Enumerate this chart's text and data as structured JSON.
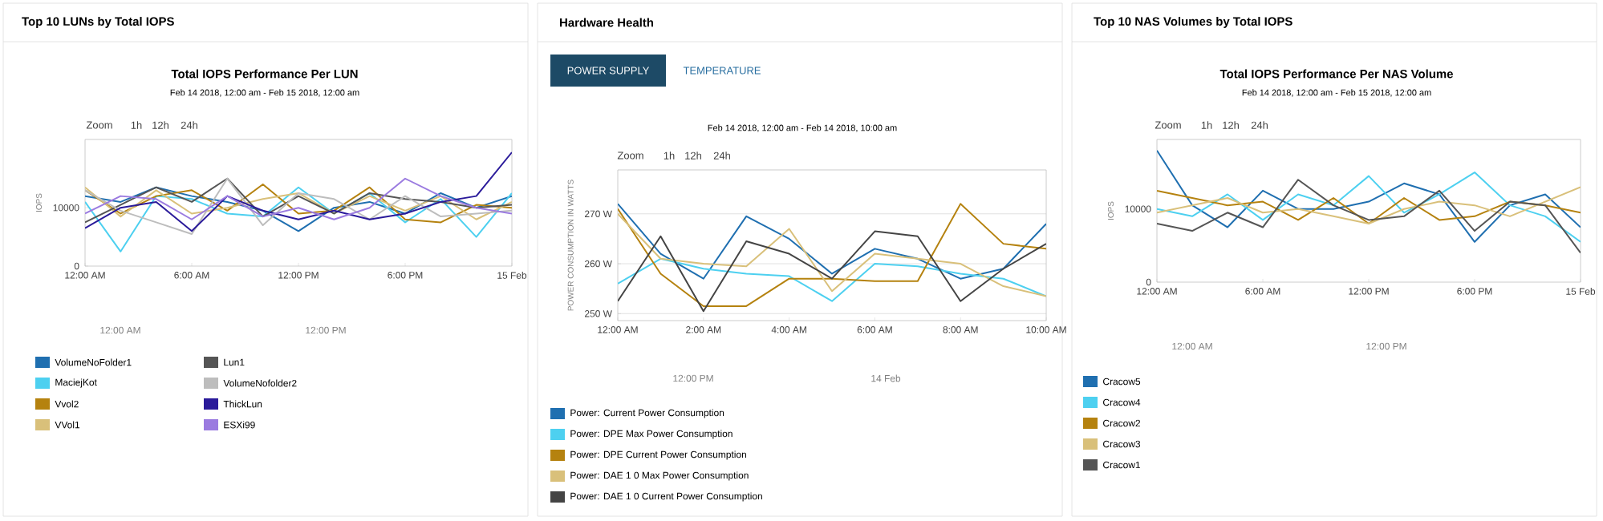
{
  "chart_data": [
    {
      "type": "line",
      "title": "Total IOPS Performance Per LUN",
      "subtitle": "Feb 14 2018, 12:00 am - Feb 15 2018, 12:00 am",
      "ylabel": "IOPS",
      "x": [
        0,
        2,
        4,
        6,
        8,
        10,
        12,
        14,
        16,
        18,
        20,
        22,
        24
      ],
      "xlim": [
        0,
        24
      ],
      "ylim": [
        0,
        21700
      ],
      "xticks": [
        {
          "value": 0,
          "label": "12:00 AM"
        },
        {
          "value": 6,
          "label": "6:00 AM"
        },
        {
          "value": 12,
          "label": "12:00 PM"
        },
        {
          "value": 18,
          "label": "6:00 PM"
        },
        {
          "value": 24,
          "label": "15 Feb"
        }
      ],
      "yticks": [
        0,
        10000
      ],
      "legend": "bottom",
      "series": [
        {
          "name": "VolumeNoFolder1",
          "color": "#1f6fb0",
          "values": [
            12000,
            11000,
            13500,
            12000,
            11000,
            9500,
            6000,
            10000,
            11000,
            9000,
            12500,
            10000,
            12000
          ]
        },
        {
          "name": "MaciejKot",
          "color": "#4dd0f0",
          "values": [
            11000,
            2500,
            12000,
            11500,
            9000,
            8500,
            13500,
            9000,
            12500,
            7500,
            11500,
            5000,
            12500
          ]
        },
        {
          "name": "Vvol2",
          "color": "#b5820f",
          "values": [
            13000,
            9000,
            12000,
            13000,
            9500,
            14000,
            9000,
            9500,
            13500,
            8000,
            7500,
            10500,
            10000
          ]
        },
        {
          "name": "VVol1",
          "color": "#d9c07a",
          "values": [
            13500,
            8500,
            13000,
            9000,
            10000,
            11500,
            12500,
            9000,
            12000,
            9500,
            12000,
            8000,
            11000
          ]
        },
        {
          "name": "Lun1",
          "color": "#555555",
          "values": [
            7500,
            10500,
            13500,
            11000,
            15000,
            8500,
            12000,
            9000,
            12500,
            11500,
            11000,
            10000,
            10500
          ]
        },
        {
          "name": "VolumeNofolder2",
          "color": "#bdbdbd",
          "values": [
            13000,
            9500,
            7500,
            5500,
            15000,
            7000,
            12500,
            11500,
            8000,
            12000,
            8500,
            9000,
            9500
          ]
        },
        {
          "name": "ThickLun",
          "color": "#2a1a9a",
          "values": [
            6500,
            10000,
            11000,
            6000,
            12000,
            9500,
            8000,
            9500,
            8000,
            9000,
            11000,
            12000,
            19500
          ]
        },
        {
          "name": "ESXi99",
          "color": "#9b7be0",
          "values": [
            9000,
            12000,
            11500,
            8000,
            12000,
            8500,
            10000,
            8000,
            10000,
            15000,
            12000,
            10000,
            9000
          ]
        }
      ],
      "annotations": [
        "Top 10 LUNs by Total IOPS",
        "Zoom",
        "1h",
        "12h",
        "24h",
        "12:00 AM",
        "12:00 PM"
      ]
    },
    {
      "type": "line",
      "subtitle": "Feb 14 2018, 12:00 am - Feb 14 2018, 10:00 am",
      "ylabel": "POWER CONSUMPTION IN WATTS",
      "x": [
        0,
        1,
        2,
        3,
        4,
        5,
        6,
        7,
        8,
        9,
        10
      ],
      "xlim": [
        0,
        10
      ],
      "ylim": [
        248.6,
        278.8
      ],
      "xticks": [
        {
          "value": 0,
          "label": "12:00 AM"
        },
        {
          "value": 2,
          "label": "2:00 AM"
        },
        {
          "value": 4,
          "label": "4:00 AM"
        },
        {
          "value": 6,
          "label": "6:00 AM"
        },
        {
          "value": 8,
          "label": "8:00 AM"
        },
        {
          "value": 10,
          "label": "10:00 AM"
        }
      ],
      "yticks": [
        {
          "value": 250,
          "label": "250 W"
        },
        {
          "value": 260,
          "label": "260 W"
        },
        {
          "value": 270,
          "label": "270 W"
        }
      ],
      "grid": "y",
      "legend": "bottom",
      "series": [
        {
          "name": "Power: Current Power Consumption",
          "color": "#1f6fb0",
          "values": [
            272,
            262,
            257,
            269.5,
            265,
            258,
            263,
            261,
            257,
            259,
            268
          ]
        },
        {
          "name": "Power: DPE Max Power Consumption",
          "color": "#4dd0f0",
          "values": [
            256,
            261,
            259,
            258,
            257.5,
            252.5,
            260,
            259.5,
            258,
            257,
            253.5
          ]
        },
        {
          "name": "Power: DPE Current Power Consumption",
          "color": "#b5820f",
          "values": [
            271,
            258,
            251.5,
            251.5,
            257,
            257,
            256.5,
            256.5,
            272,
            264,
            263
          ]
        },
        {
          "name": "Power: DAE 1 0 Max Power Consumption",
          "color": "#d9c07a",
          "values": [
            270,
            261,
            260,
            259.5,
            267,
            254.5,
            262,
            261,
            260,
            255.5,
            253.5
          ]
        },
        {
          "name": "Power: DAE 1 0 Current Power Consumption",
          "color": "#444444",
          "values": [
            252.5,
            265.5,
            250.5,
            264.5,
            262,
            257,
            266.5,
            265.5,
            252.5,
            259,
            264
          ]
        }
      ],
      "annotations": [
        "Hardware Health",
        "POWER SUPPLY",
        "TEMPERATURE",
        "Zoom",
        "1h",
        "12h",
        "24h",
        "12:00 PM",
        "14 Feb"
      ]
    },
    {
      "type": "line",
      "title": "Total IOPS Performance Per NAS Volume",
      "subtitle": "Feb 14 2018, 12:00 am - Feb 15 2018, 12:00 am",
      "ylabel": "IOPS",
      "x": [
        0,
        2,
        4,
        6,
        8,
        10,
        12,
        14,
        16,
        18,
        20,
        22,
        24
      ],
      "xlim": [
        0,
        24
      ],
      "ylim": [
        0,
        19500
      ],
      "xticks": [
        {
          "value": 0,
          "label": "12:00 AM"
        },
        {
          "value": 6,
          "label": "6:00 AM"
        },
        {
          "value": 12,
          "label": "12:00 PM"
        },
        {
          "value": 18,
          "label": "6:00 PM"
        },
        {
          "value": 24,
          "label": "15 Feb"
        }
      ],
      "yticks": [
        0,
        10000
      ],
      "legend": "bottom",
      "series": [
        {
          "name": "Cracow5",
          "color": "#1f6fb0",
          "values": [
            18000,
            10500,
            7500,
            12500,
            10000,
            10000,
            11000,
            13500,
            12000,
            5500,
            10500,
            12000,
            7500
          ]
        },
        {
          "name": "Cracow4",
          "color": "#4dd0f0",
          "values": [
            10000,
            9000,
            12000,
            8500,
            12000,
            10500,
            14500,
            9500,
            12000,
            15000,
            10500,
            9000,
            5500
          ]
        },
        {
          "name": "Cracow2",
          "color": "#b5820f",
          "values": [
            12500,
            11500,
            10500,
            11000,
            8500,
            11500,
            8000,
            11500,
            8500,
            9000,
            11000,
            10500,
            9500
          ]
        },
        {
          "name": "Cracow3",
          "color": "#d9c07a",
          "values": [
            9500,
            10500,
            11500,
            9500,
            10000,
            9000,
            8000,
            10000,
            11000,
            10500,
            9000,
            11000,
            13000
          ]
        },
        {
          "name": "Cracow1",
          "color": "#555555",
          "values": [
            8000,
            7000,
            9500,
            7500,
            14000,
            10500,
            8500,
            9000,
            12500,
            7000,
            11000,
            10500,
            4000
          ]
        }
      ],
      "annotations": [
        "Top 10 NAS Volumes by Total IOPS",
        "Zoom",
        "1h",
        "12h",
        "24h",
        "12:00 AM",
        "12:00 PM"
      ]
    }
  ]
}
